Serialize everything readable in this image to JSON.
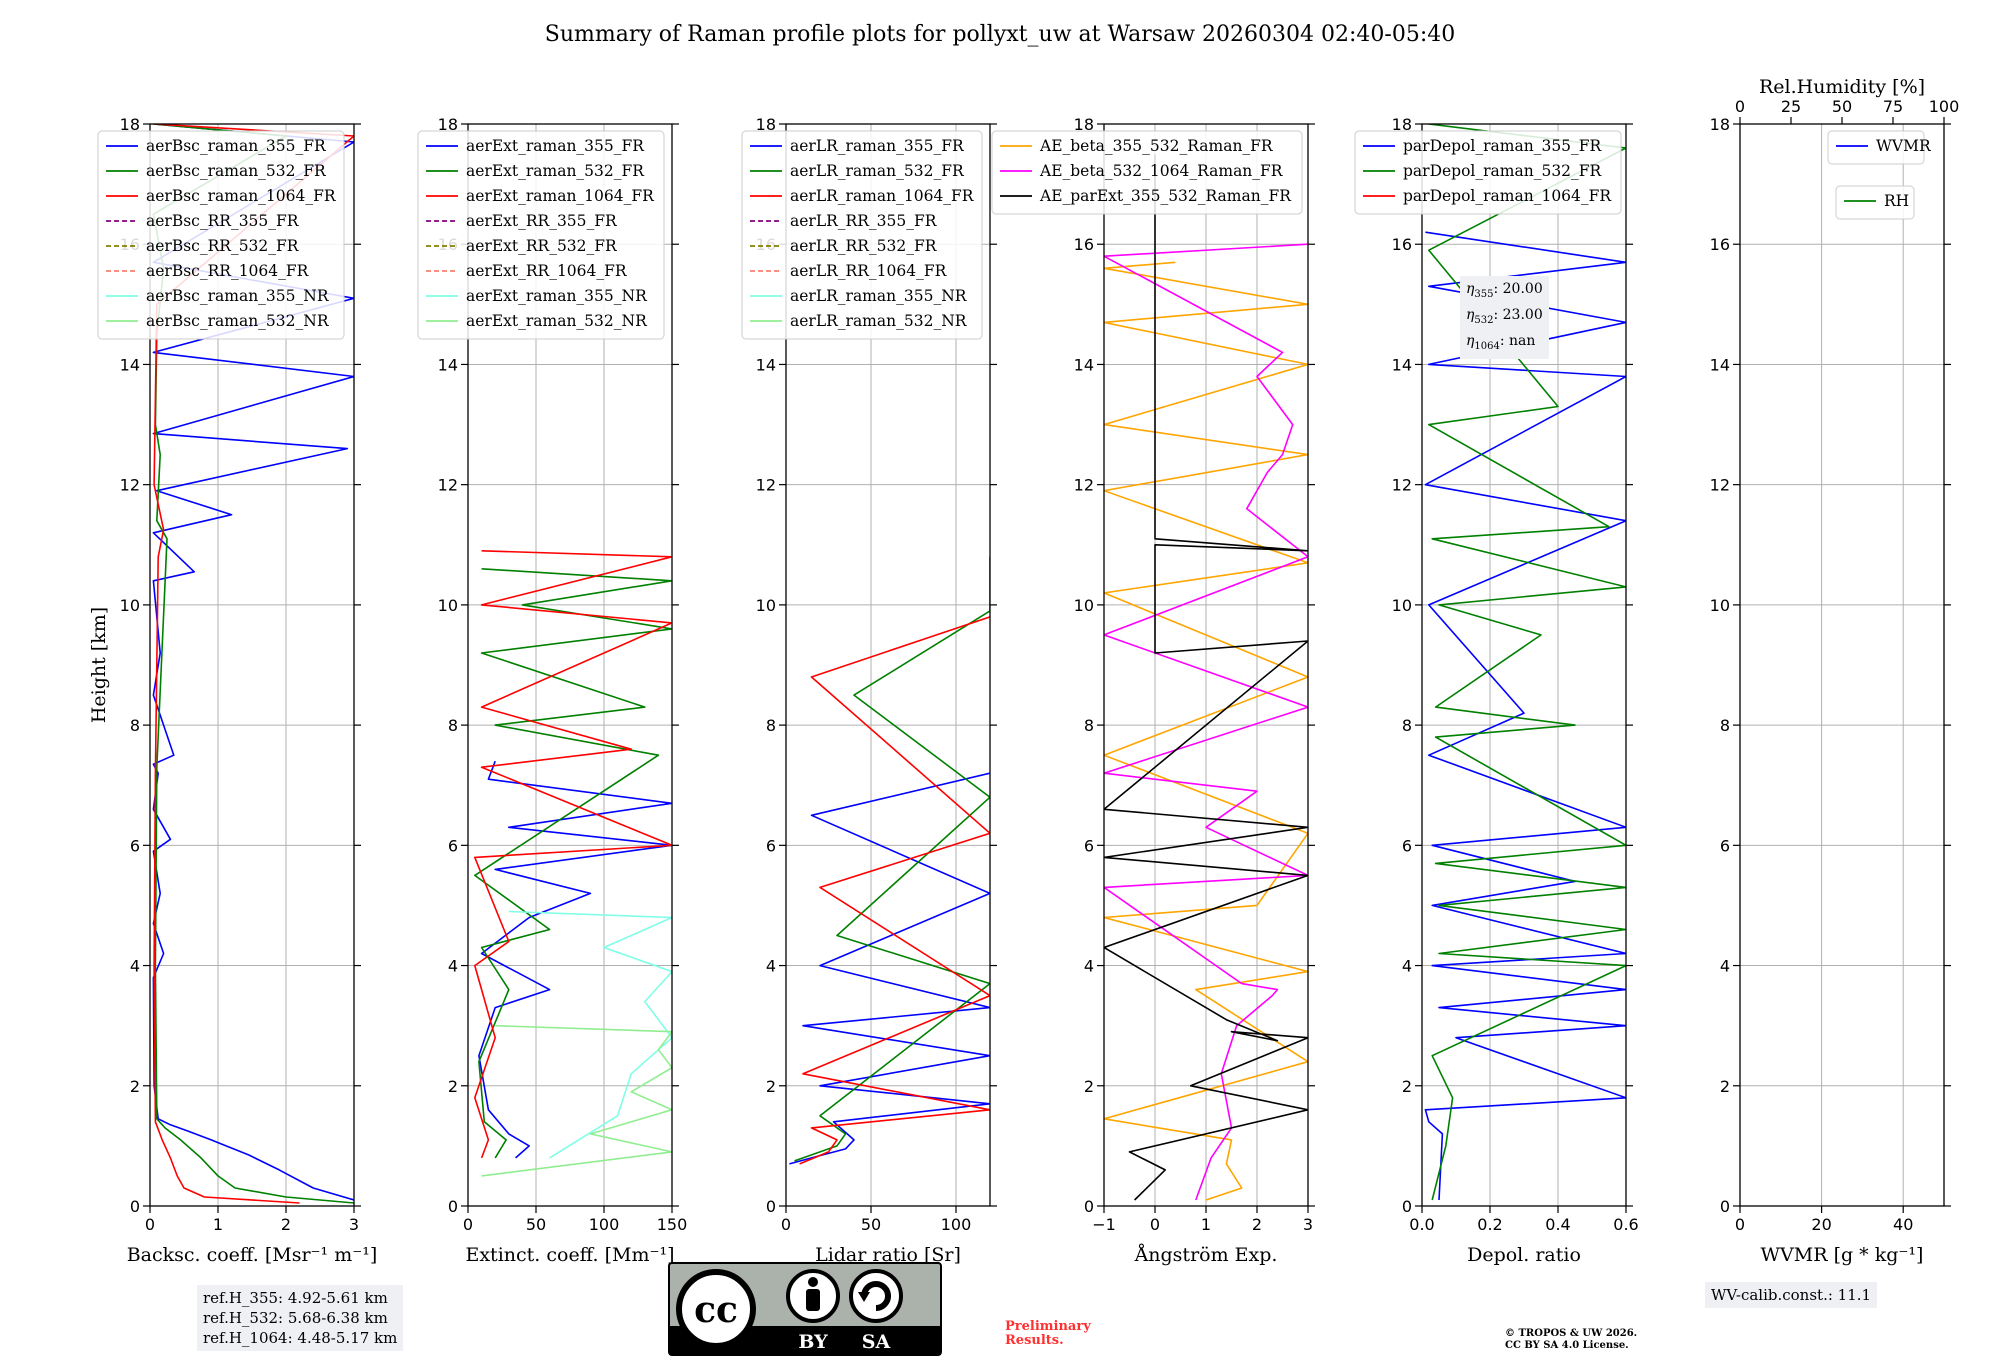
{
  "title": "Summary of Raman profile plots for pollyxt_uw at Warsaw 20260304 02:40-05:40",
  "colors": {
    "blue": "#0000ff",
    "green": "#008000",
    "red": "#ff0000",
    "purple": "#800080",
    "olive": "#808000",
    "salmon": "#fa8072",
    "cyan": "#7fffe6",
    "lightgreen": "#90ee90",
    "orange": "#ffa500",
    "magenta": "#ff00ff",
    "black": "#000000",
    "prelim": "#ff3030"
  },
  "chart_data": [
    {
      "type": "line",
      "id": "backscatter",
      "xlabel": "Backsc. coeff. [Msr⁻¹ m⁻¹]",
      "ylabel": "Height [km]",
      "xlim": [
        0,
        3
      ],
      "ylim": [
        0,
        18
      ],
      "xticks": [
        "0",
        "1",
        "2",
        "3"
      ],
      "yticks": [
        "0",
        "2",
        "4",
        "6",
        "8",
        "10",
        "12",
        "14",
        "16",
        "18"
      ],
      "legend": [
        "aerBsc_raman_355_FR",
        "aerBsc_raman_532_FR",
        "aerBsc_raman_1064_FR",
        "aerBsc_RR_355_FR",
        "aerBsc_RR_532_FR",
        "aerBsc_RR_1064_FR",
        "aerBsc_raman_355_NR",
        "aerBsc_raman_532_NR"
      ],
      "legend_styles": [
        [
          "blue",
          "solid"
        ],
        [
          "green",
          "solid"
        ],
        [
          "red",
          "solid"
        ],
        [
          "purple",
          "dashed"
        ],
        [
          "olive",
          "dashed"
        ],
        [
          "salmon",
          "dashed"
        ],
        [
          "cyan",
          "solid"
        ],
        [
          "lightgreen",
          "solid"
        ]
      ],
      "series": [
        {
          "name": "aerBsc_raman_355_FR",
          "color": "blue",
          "x": [
            3.0,
            2.4,
            1.9,
            1.45,
            0.9,
            0.55,
            0.3,
            0.12,
            0.06,
            0.05,
            0.2,
            0.05,
            0.15,
            0.05,
            0.3,
            0.05,
            0.12,
            0.05,
            0.35,
            0.05,
            0.15,
            0.05,
            0.65,
            0.05,
            1.2,
            0.1,
            2.9,
            0.05,
            3.0,
            0.05,
            3.0,
            0.05,
            3.0,
            0.05
          ],
          "y": [
            0.1,
            0.3,
            0.6,
            0.85,
            1.1,
            1.25,
            1.35,
            1.45,
            2.0,
            3.8,
            4.2,
            4.7,
            5.2,
            5.9,
            6.1,
            6.6,
            7.2,
            7.35,
            7.5,
            8.5,
            9.2,
            10.4,
            10.55,
            11.2,
            11.5,
            11.9,
            12.6,
            12.85,
            13.8,
            14.2,
            15.1,
            15.7,
            17.7,
            18.0
          ]
        },
        {
          "name": "aerBsc_raman_532_FR",
          "color": "green",
          "x": [
            3.0,
            2.0,
            1.25,
            1.0,
            0.75,
            0.45,
            0.22,
            0.1,
            0.08,
            0.1,
            0.25,
            0.1,
            0.15,
            0.08,
            0.1,
            0.2,
            0.05,
            2.0,
            0.05
          ],
          "y": [
            0.05,
            0.15,
            0.3,
            0.5,
            0.8,
            1.1,
            1.3,
            1.45,
            4.0,
            7.3,
            11.1,
            11.4,
            12.5,
            13.0,
            14.5,
            15.6,
            16.5,
            17.8,
            18.0
          ]
        },
        {
          "name": "aerBsc_raman_1064_FR",
          "color": "red",
          "x": [
            2.2,
            0.8,
            0.5,
            0.4,
            0.3,
            0.18,
            0.08,
            0.06,
            0.08,
            0.12,
            0.2,
            0.06,
            0.1,
            3.0,
            0.06
          ],
          "y": [
            0.05,
            0.15,
            0.3,
            0.5,
            0.8,
            1.1,
            1.4,
            4.0,
            7.2,
            10.8,
            11.25,
            12.0,
            15.0,
            17.8,
            18.0
          ]
        }
      ],
      "info_box": [
        "ref.H_355: 4.92-5.61 km",
        "ref.H_532: 5.68-6.38 km",
        "ref.H_1064: 4.48-5.17 km"
      ]
    },
    {
      "type": "line",
      "id": "extinction",
      "xlabel": "Extinct. coeff. [Mm⁻¹]",
      "xlim": [
        0,
        150
      ],
      "ylim": [
        0,
        18
      ],
      "xticks": [
        "0",
        "50",
        "100",
        "150"
      ],
      "yticks": [
        "0",
        "2",
        "4",
        "6",
        "8",
        "10",
        "12",
        "14",
        "16",
        "18"
      ],
      "legend": [
        "aerExt_raman_355_FR",
        "aerExt_raman_532_FR",
        "aerExt_raman_1064_FR",
        "aerExt_RR_355_FR",
        "aerExt_RR_532_FR",
        "aerExt_RR_1064_FR",
        "aerExt_raman_355_NR",
        "aerExt_raman_532_NR"
      ],
      "legend_styles": [
        [
          "blue",
          "solid"
        ],
        [
          "green",
          "solid"
        ],
        [
          "red",
          "solid"
        ],
        [
          "purple",
          "dashed"
        ],
        [
          "olive",
          "dashed"
        ],
        [
          "salmon",
          "dashed"
        ],
        [
          "cyan",
          "solid"
        ],
        [
          "lightgreen",
          "solid"
        ]
      ],
      "series": [
        {
          "name": "aerExt_raman_355_FR",
          "color": "blue",
          "x": [
            35,
            45,
            30,
            15,
            8,
            20,
            60,
            10,
            45,
            90,
            20,
            150,
            30,
            150,
            15,
            20
          ],
          "y": [
            0.8,
            1.0,
            1.2,
            1.6,
            2.5,
            3.3,
            3.6,
            4.2,
            4.8,
            5.2,
            5.6,
            6.0,
            6.3,
            6.7,
            7.1,
            7.4
          ]
        },
        {
          "name": "aerExt_raman_532_FR",
          "color": "green",
          "x": [
            20,
            28,
            12,
            8,
            30,
            10,
            60,
            5,
            140,
            20,
            130,
            10,
            150,
            40,
            150,
            10
          ],
          "y": [
            0.8,
            1.1,
            1.4,
            2.4,
            3.6,
            4.3,
            4.6,
            5.5,
            7.5,
            8.0,
            8.3,
            9.2,
            9.6,
            10.0,
            10.4,
            10.6
          ]
        },
        {
          "name": "aerExt_raman_1064_FR",
          "color": "red",
          "x": [
            10,
            15,
            5,
            20,
            5,
            30,
            5,
            150,
            10,
            120,
            10,
            150,
            10,
            150,
            10
          ],
          "y": [
            0.8,
            1.1,
            1.8,
            2.8,
            4.0,
            4.4,
            5.8,
            6.0,
            7.3,
            7.6,
            8.3,
            9.7,
            10.0,
            10.8,
            10.9
          ]
        },
        {
          "name": "aerExt_raman_355_NR",
          "color": "cyan",
          "x": [
            60,
            110,
            120,
            150,
            130,
            150,
            100,
            150,
            30
          ],
          "y": [
            0.8,
            1.5,
            2.2,
            2.8,
            3.4,
            3.9,
            4.3,
            4.8,
            4.9
          ]
        },
        {
          "name": "aerExt_raman_532_NR",
          "color": "lightgreen",
          "x": [
            10,
            150,
            90,
            150,
            120,
            150,
            140,
            150,
            20
          ],
          "y": [
            0.5,
            0.9,
            1.2,
            1.6,
            1.9,
            2.3,
            2.6,
            2.9,
            3.0
          ]
        }
      ]
    },
    {
      "type": "line",
      "id": "lidar-ratio",
      "xlabel": "Lidar ratio [Sr]",
      "xlim": [
        0,
        120
      ],
      "ylim": [
        0,
        18
      ],
      "xticks": [
        "0",
        "50",
        "100"
      ],
      "yticks": [
        "0",
        "2",
        "4",
        "6",
        "8",
        "10",
        "12",
        "14",
        "16",
        "18"
      ],
      "legend": [
        "aerLR_raman_355_FR",
        "aerLR_raman_532_FR",
        "aerLR_raman_1064_FR",
        "aerLR_RR_355_FR",
        "aerLR_RR_532_FR",
        "aerLR_RR_1064_FR",
        "aerLR_raman_355_NR",
        "aerLR_raman_532_NR"
      ],
      "legend_styles": [
        [
          "blue",
          "solid"
        ],
        [
          "green",
          "solid"
        ],
        [
          "red",
          "solid"
        ],
        [
          "purple",
          "dashed"
        ],
        [
          "olive",
          "dashed"
        ],
        [
          "salmon",
          "dashed"
        ],
        [
          "cyan",
          "solid"
        ],
        [
          "lightgreen",
          "solid"
        ]
      ],
      "series": [
        {
          "name": "aerLR_raman_355_FR",
          "color": "blue",
          "x": [
            2,
            15,
            35,
            40,
            28,
            120,
            20,
            120,
            10,
            120,
            20,
            120,
            15,
            120
          ],
          "y": [
            0.7,
            0.8,
            0.95,
            1.1,
            1.4,
            1.7,
            2.0,
            2.5,
            3.0,
            3.3,
            4.0,
            5.2,
            6.5,
            7.2
          ]
        },
        {
          "name": "aerLR_raman_532_FR",
          "color": "green",
          "x": [
            5,
            30,
            35,
            20,
            120,
            30,
            120,
            40,
            120,
            120
          ],
          "y": [
            0.75,
            1.0,
            1.2,
            1.5,
            3.7,
            4.5,
            6.8,
            8.5,
            9.9,
            10.8
          ]
        },
        {
          "name": "aerLR_raman_1064_FR",
          "color": "red",
          "x": [
            8,
            25,
            30,
            15,
            120,
            10,
            120,
            20,
            120,
            15,
            120
          ],
          "y": [
            0.7,
            0.9,
            1.1,
            1.3,
            1.6,
            2.2,
            3.5,
            5.3,
            6.2,
            8.8,
            9.8
          ]
        }
      ]
    },
    {
      "type": "line",
      "id": "angstrom",
      "xlabel": "Ångström Exp.",
      "xlim": [
        -1,
        3
      ],
      "ylim": [
        0,
        18
      ],
      "xticks": [
        "−1",
        "0",
        "1",
        "2",
        "3"
      ],
      "yticks": [
        "0",
        "2",
        "4",
        "6",
        "8",
        "10",
        "12",
        "14",
        "16",
        "18"
      ],
      "legend": [
        "AE_beta_355_532_Raman_FR",
        "AE_beta_532_1064_Raman_FR",
        "AE_parExt_355_532_Raman_FR"
      ],
      "legend_styles": [
        [
          "orange",
          "solid"
        ],
        [
          "magenta",
          "solid"
        ],
        [
          "black",
          "solid"
        ]
      ],
      "series": [
        {
          "name": "AE_beta_355_532_Raman_FR",
          "color": "orange",
          "x": [
            1.0,
            1.7,
            1.4,
            1.5,
            -1.0,
            3.0,
            0.8,
            3.0,
            -1.0,
            2.0,
            3.0,
            -1.0,
            3.0,
            -1.0,
            3.0,
            -1.0,
            3.0,
            -1.0,
            3.0,
            -1.0,
            3.0,
            -1.0,
            0.4
          ],
          "y": [
            0.1,
            0.3,
            0.7,
            1.1,
            1.45,
            2.4,
            3.6,
            3.9,
            4.8,
            5.0,
            6.2,
            7.5,
            8.8,
            10.2,
            10.7,
            11.9,
            12.5,
            13.0,
            14.0,
            14.7,
            15.0,
            15.6,
            15.7
          ]
        },
        {
          "name": "AE_beta_532_1064_Raman_FR",
          "color": "magenta",
          "x": [
            0.8,
            1.1,
            1.5,
            1.3,
            1.6,
            2.3,
            2.4,
            1.7,
            -1.0,
            3.0,
            1.0,
            2.0,
            -1.0,
            3.0,
            -1.0,
            3.0,
            1.8,
            2.2,
            2.5,
            2.7,
            2.0,
            2.5,
            -1.0,
            3.0
          ],
          "y": [
            0.1,
            0.8,
            1.3,
            2.2,
            3.0,
            3.5,
            3.6,
            3.7,
            5.3,
            5.5,
            6.3,
            6.9,
            7.2,
            8.3,
            9.5,
            10.8,
            11.6,
            12.2,
            12.5,
            13.0,
            13.8,
            14.2,
            15.8,
            16.0
          ]
        },
        {
          "name": "AE_parExt_355_532_Raman_FR",
          "color": "black",
          "x": [
            -0.4,
            0.2,
            -0.5,
            3.0,
            0.7,
            3.0,
            1.5,
            2.4,
            1.4,
            -1.0,
            3.0,
            -1.0,
            3.0,
            -1.0,
            3.0,
            0.0,
            0.0,
            3.0,
            0.0,
            0.0
          ],
          "y": [
            0.1,
            0.6,
            0.9,
            1.6,
            2.0,
            2.8,
            2.9,
            2.75,
            3.1,
            4.3,
            5.5,
            5.8,
            6.3,
            6.6,
            9.4,
            9.2,
            11.0,
            10.9,
            11.1,
            17.5
          ]
        }
      ]
    },
    {
      "type": "line",
      "id": "depol",
      "xlabel": "Depol. ratio",
      "xlim": [
        0,
        0.6
      ],
      "ylim": [
        0,
        18
      ],
      "xticks": [
        "0.0",
        "0.2",
        "0.4",
        "0.6"
      ],
      "yticks": [
        "0",
        "2",
        "4",
        "6",
        "8",
        "10",
        "12",
        "14",
        "16",
        "18"
      ],
      "legend": [
        "parDepol_raman_355_FR",
        "parDepol_raman_532_FR",
        "parDepol_raman_1064_FR"
      ],
      "legend_styles": [
        [
          "blue",
          "solid"
        ],
        [
          "green",
          "solid"
        ],
        [
          "red",
          "solid"
        ]
      ],
      "series": [
        {
          "name": "parDepol_raman_355_FR",
          "color": "blue",
          "x": [
            0.05,
            0.06,
            0.02,
            0.01,
            0.6,
            0.1,
            0.6,
            0.05,
            0.6,
            0.03,
            0.6,
            0.03,
            0.45,
            0.03,
            0.6,
            0.02,
            0.3,
            0.02,
            0.6,
            0.01,
            0.6,
            0.02,
            0.6,
            0.02,
            0.6,
            0.01
          ],
          "y": [
            0.1,
            1.2,
            1.4,
            1.6,
            1.8,
            2.8,
            3.0,
            3.3,
            3.6,
            4.0,
            4.2,
            5.0,
            5.4,
            6.0,
            6.3,
            7.5,
            8.2,
            10.0,
            11.4,
            12.0,
            13.8,
            14.0,
            14.7,
            15.3,
            15.7,
            16.2
          ]
        },
        {
          "name": "parDepol_raman_532_FR",
          "color": "green",
          "x": [
            0.03,
            0.07,
            0.09,
            0.03,
            0.6,
            0.05,
            0.6,
            0.05,
            0.6,
            0.04,
            0.6,
            0.04,
            0.45,
            0.04,
            0.35,
            0.05,
            0.6,
            0.03,
            0.55,
            0.02,
            0.4,
            0.02,
            0.6,
            0.02
          ],
          "y": [
            0.1,
            1.0,
            1.8,
            2.5,
            4.0,
            4.2,
            4.6,
            5.0,
            5.3,
            5.7,
            6.0,
            7.8,
            8.0,
            8.3,
            9.5,
            10.0,
            10.3,
            11.1,
            11.3,
            13.0,
            13.3,
            15.9,
            17.6,
            18.0
          ]
        }
      ],
      "info_box": [
        {
          "sym": "η",
          "sub": "355",
          "value": ": 20.00"
        },
        {
          "sym": "η",
          "sub": "532",
          "value": ": 23.00"
        },
        {
          "sym": "η",
          "sub": "1064",
          "value": ": nan"
        }
      ]
    },
    {
      "type": "line",
      "id": "wvmr",
      "xlabel": "WVMR [g * kg⁻¹]",
      "top_xlabel": "Rel.Humidity [%]",
      "xlim": [
        0,
        50
      ],
      "top_xlim": [
        0,
        100
      ],
      "ylim": [
        0,
        18
      ],
      "xticks": [
        "0",
        "20",
        "40"
      ],
      "top_xticks": [
        "0",
        "25",
        "50",
        "75",
        "100"
      ],
      "yticks": [
        "0",
        "2",
        "4",
        "6",
        "8",
        "10",
        "12",
        "14",
        "16",
        "18"
      ],
      "legend": [
        "WVMR"
      ],
      "legend2": [
        "RH"
      ],
      "legend_styles": [
        [
          "blue",
          "solid"
        ]
      ],
      "legend2_styles": [
        [
          "green",
          "solid"
        ]
      ],
      "series": [],
      "info_box": [
        "WV-calib.const.: 11.1"
      ]
    }
  ],
  "footer": {
    "preliminary": [
      "Preliminary",
      "Results."
    ],
    "copyright": [
      "© TROPOS & UW 2026.",
      "CC BY SA 4.0 License."
    ],
    "license_badge": {
      "cc": "cc",
      "by": "BY",
      "sa": "SA"
    }
  }
}
